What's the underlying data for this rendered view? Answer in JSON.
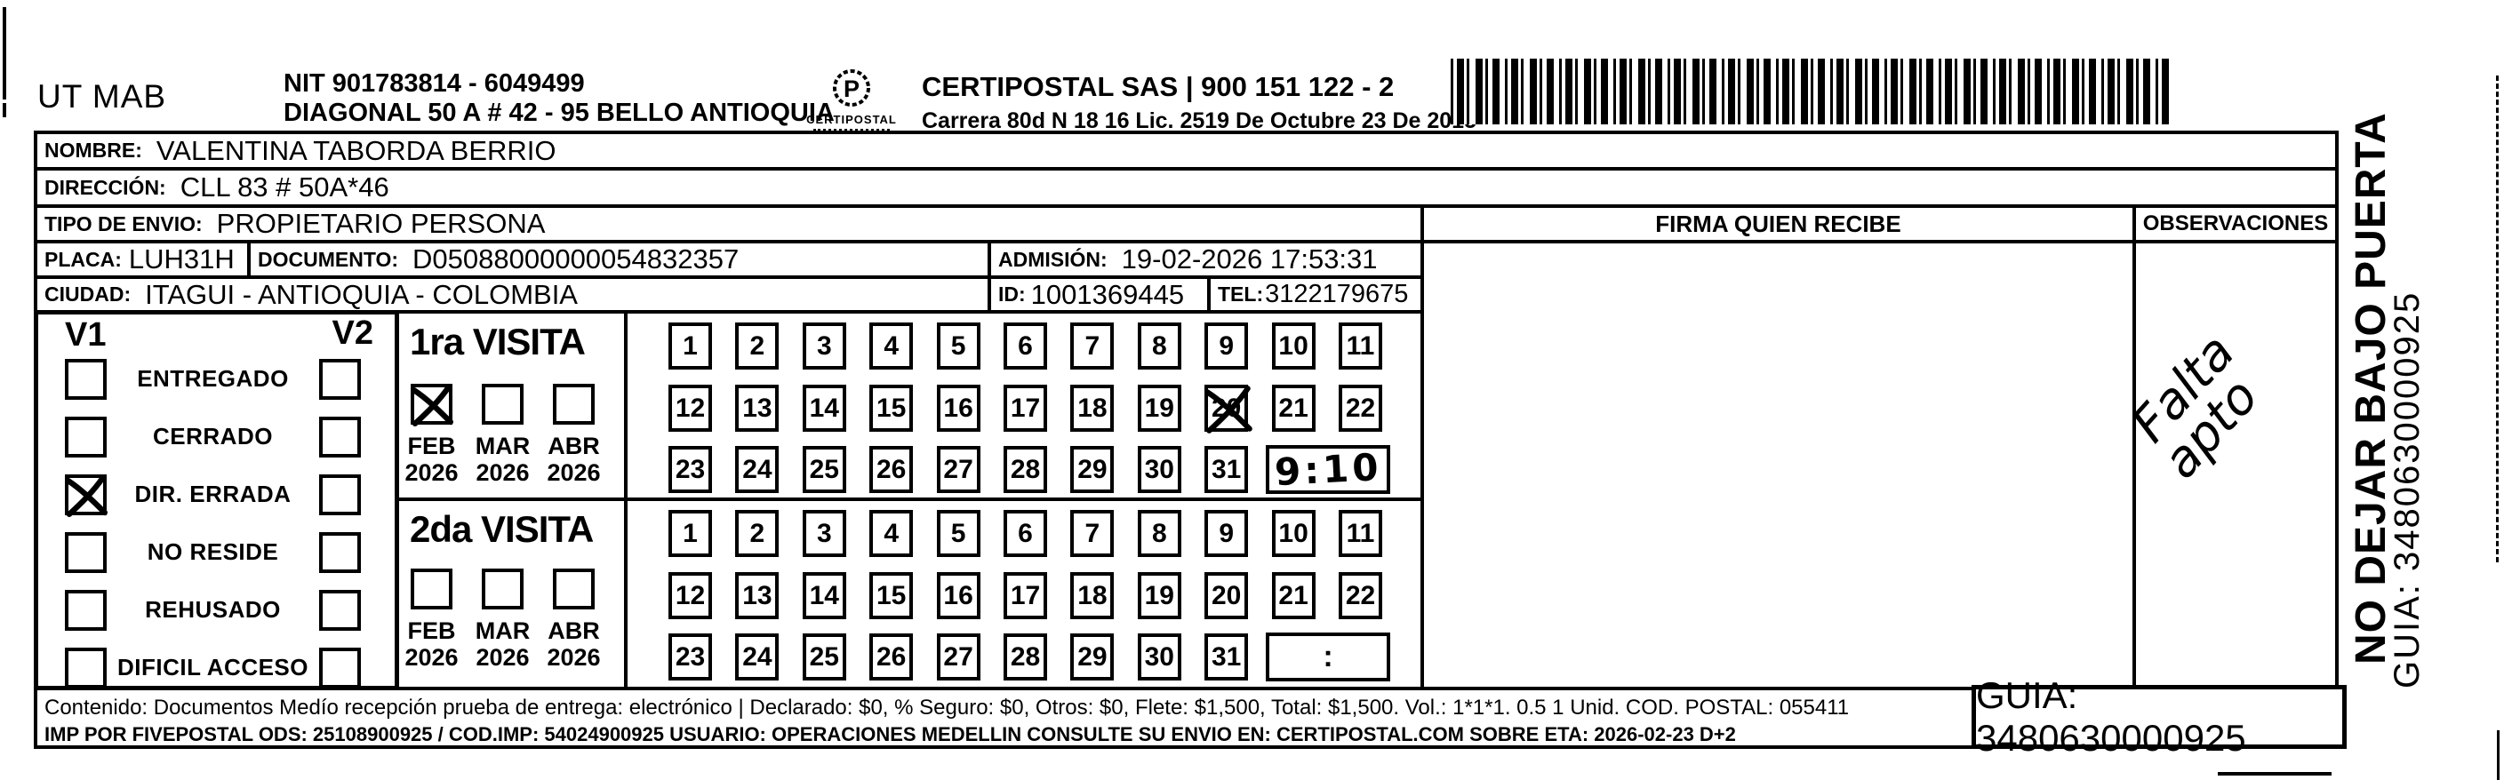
{
  "header": {
    "client_code": "UT MAB",
    "nit_line": "NIT 901783814 - 6049499",
    "address_line": "DIAGONAL 50 A # 42 - 95  BELLO  ANTIOQUIA",
    "logo_name": "CERTIPOSTAL",
    "company_line": "CERTIPOSTAL SAS | 900 151 122 - 2",
    "license_line": "Carrera 80d N 18 16  Lic. 2519 De Octubre 23 De 2015"
  },
  "recipient": {
    "nombre_label": "NOMBRE:",
    "nombre": "VALENTINA TABORDA BERRIO",
    "direccion_label": "DIRECCIÓN:",
    "direccion": "CLL 83 # 50A*46",
    "tipo_envio_label": "TIPO DE ENVIO:",
    "tipo_envio": "PROPIETARIO PERSONA",
    "placa_label": "PLACA:",
    "placa": "LUH31H",
    "documento_label": "DOCUMENTO:",
    "documento": "D05088000000054832357",
    "admision_label": "ADMISIÓN:",
    "admision": "19-02-2026 17:53:31",
    "ciudad_label": "CIUDAD:",
    "ciudad": "ITAGUI - ANTIOQUIA - COLOMBIA",
    "id_label": "ID:",
    "id_value": "1001369445",
    "tel_label": "TEL:",
    "tel": "3122179675"
  },
  "signature": {
    "firma_header": "FIRMA QUIEN RECIBE",
    "observaciones_header": "OBSERVACIONES",
    "observaciones_handwritten_line1": "Falta",
    "observaciones_handwritten_line2": "apto"
  },
  "visits": {
    "v1_label": "V1",
    "v2_label": "V2",
    "statuses": [
      {
        "label": "ENTREGADO",
        "v1_checked": false,
        "v2_checked": false
      },
      {
        "label": "CERRADO",
        "v1_checked": false,
        "v2_checked": false
      },
      {
        "label": "DIR. ERRADA",
        "v1_checked": true,
        "v2_checked": false
      },
      {
        "label": "NO RESIDE",
        "v1_checked": false,
        "v2_checked": false
      },
      {
        "label": "REHUSADO",
        "v1_checked": false,
        "v2_checked": false
      },
      {
        "label": "DIFICIL ACCESO",
        "v1_checked": false,
        "v2_checked": false
      }
    ],
    "first_visit": {
      "title": "1ra VISITA",
      "months": [
        {
          "month": "FEB",
          "year": "2026",
          "checked": true
        },
        {
          "month": "MAR",
          "year": "2026",
          "checked": false
        },
        {
          "month": "ABR",
          "year": "2026",
          "checked": false
        }
      ],
      "days": [
        1,
        2,
        3,
        4,
        5,
        6,
        7,
        8,
        9,
        10,
        11,
        12,
        13,
        14,
        15,
        16,
        17,
        18,
        19,
        20,
        21,
        22,
        23,
        24,
        25,
        26,
        27,
        28,
        29,
        30,
        31
      ],
      "crossed_day": 20,
      "time_handwritten": "9:10"
    },
    "second_visit": {
      "title": "2da VISITA",
      "months": [
        {
          "month": "FEB",
          "year": "2026",
          "checked": false
        },
        {
          "month": "MAR",
          "year": "2026",
          "checked": false
        },
        {
          "month": "ABR",
          "year": "2026",
          "checked": false
        }
      ],
      "days": [
        1,
        2,
        3,
        4,
        5,
        6,
        7,
        8,
        9,
        10,
        11,
        12,
        13,
        14,
        15,
        16,
        17,
        18,
        19,
        20,
        21,
        22,
        23,
        24,
        25,
        26,
        27,
        28,
        29,
        30,
        31
      ],
      "crossed_day": null,
      "time_placeholder": ":"
    }
  },
  "side_note": {
    "warning": "NO DEJAR BAJO PUERTA",
    "guia": "GUIA: 3480630000925"
  },
  "footer": {
    "contents_line": "Contenido: Documentos Medío recepción prueba de entrega: electrónico | Declarado: $0, % Seguro: $0, Otros: $0, Flete: $1,500, Total: $1,500. Vol.: 1*1*1. 0.5  1 Unid. COD. POSTAL: 055411",
    "imp_line": "IMP POR FIVEPOSTAL ODS: 25108900925 / COD.IMP: 54024900925 USUARIO: OPERACIONES MEDELLIN CONSULTE SU ENVIO EN: CERTIPOSTAL.COM SOBRE ETA: 2026-02-23 D+2",
    "guia_box": "GUIA: 3480630000925"
  }
}
